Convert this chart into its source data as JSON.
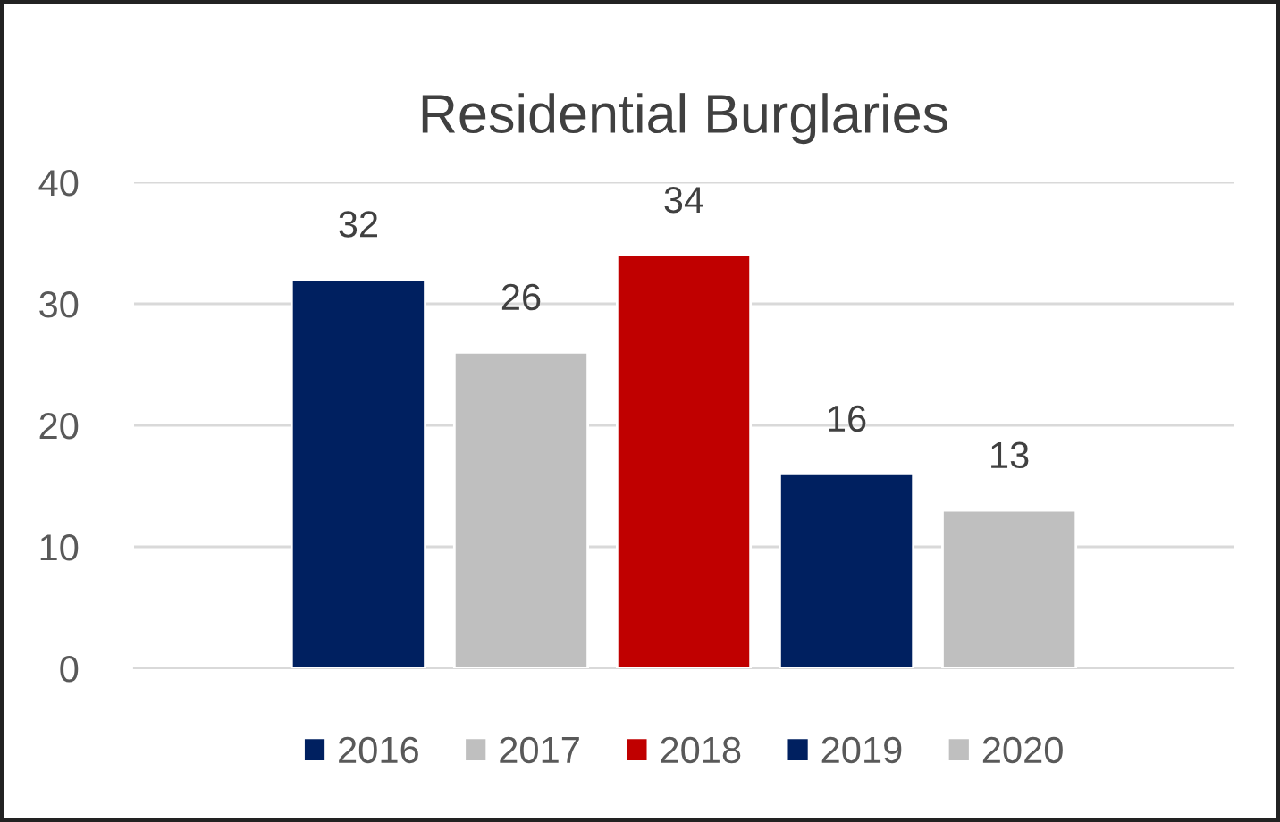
{
  "chart_data": {
    "type": "bar",
    "title": "Residential Burglaries",
    "categories": [
      null
    ],
    "series": [
      {
        "name": "2016",
        "color": "#002060",
        "values": [
          32
        ]
      },
      {
        "name": "2017",
        "color": "#bfbfbf",
        "values": [
          26
        ]
      },
      {
        "name": "2018",
        "color": "#c00000",
        "values": [
          34
        ]
      },
      {
        "name": "2019",
        "color": "#002060",
        "values": [
          16
        ]
      },
      {
        "name": "2020",
        "color": "#bfbfbf",
        "values": [
          13
        ]
      }
    ],
    "ylim": [
      0,
      40
    ],
    "yticks": [
      0,
      10,
      20,
      30,
      40
    ],
    "grid": "y",
    "legend": "bottom",
    "data_labels": true
  }
}
